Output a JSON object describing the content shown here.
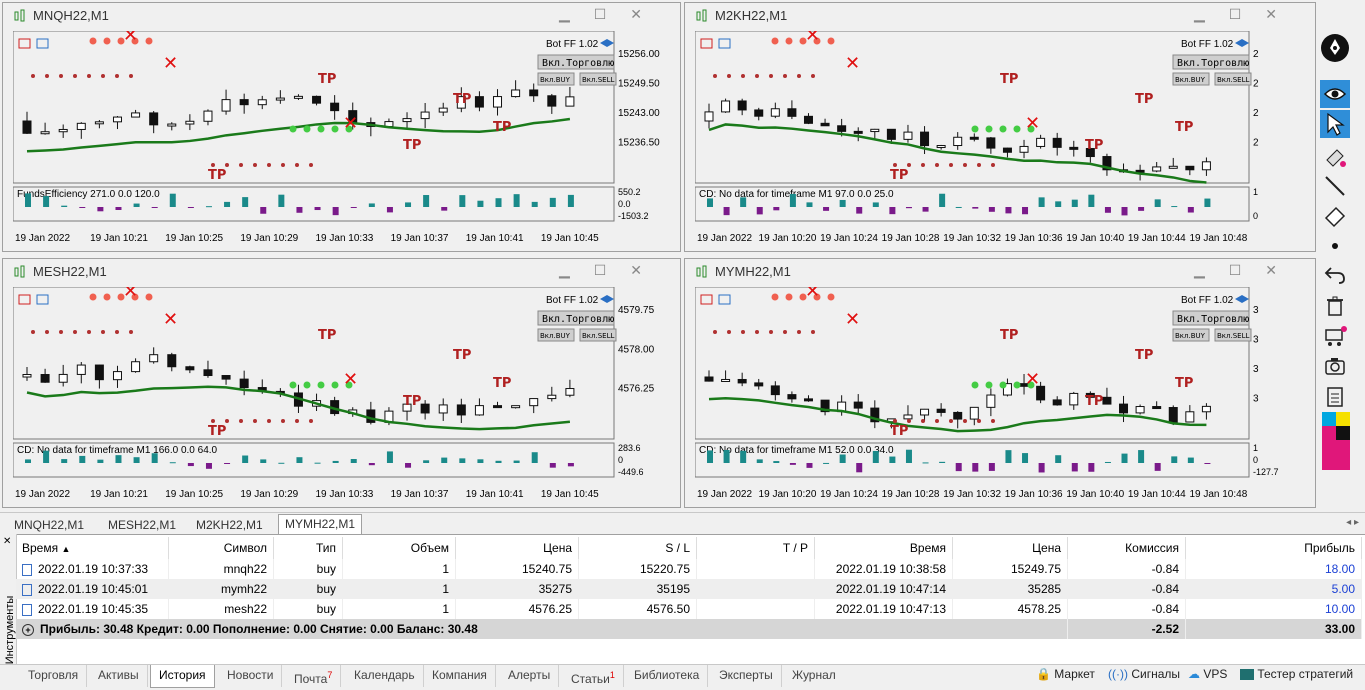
{
  "windows": [
    {
      "title": "MNQH22,M1",
      "prices": [
        "15256.00",
        "15249.50",
        "15243.00",
        "15236.50"
      ],
      "indicator": "FundsEfficiency 271.0 0.0 120.0",
      "ind_scale": [
        "550.2",
        "0.0",
        "-1503.2"
      ],
      "times": [
        "19 Jan 2022",
        "19 Jan 10:21",
        "19 Jan 10:25",
        "19 Jan 10:29",
        "19 Jan 10:33",
        "19 Jan 10:37",
        "19 Jan 10:41",
        "19 Jan 10:45"
      ]
    },
    {
      "title": "M2KH22,M1",
      "prices": [
        "2",
        "2",
        "2",
        "2"
      ],
      "indicator": "CD: No data for timeframe M1 97.0 0.0 25.0",
      "ind_scale": [
        "1",
        "0"
      ],
      "times": [
        "19 Jan 2022",
        "19 Jan 10:20",
        "19 Jan 10:24",
        "19 Jan 10:28",
        "19 Jan 10:32",
        "19 Jan 10:36",
        "19 Jan 10:40",
        "19 Jan 10:44",
        "19 Jan 10:48"
      ]
    },
    {
      "title": "MESH22,M1",
      "prices": [
        "4579.75",
        "4578.00",
        "4576.25"
      ],
      "indicator": "CD: No data for timeframe M1 166.0 0.0 64.0",
      "ind_scale": [
        "283.6",
        "0",
        "-449.6"
      ],
      "times": [
        "19 Jan 2022",
        "19 Jan 10:21",
        "19 Jan 10:25",
        "19 Jan 10:29",
        "19 Jan 10:33",
        "19 Jan 10:37",
        "19 Jan 10:41",
        "19 Jan 10:45"
      ]
    },
    {
      "title": "MYMH22,M1",
      "prices": [
        "3",
        "3",
        "3",
        "3"
      ],
      "indicator": "CD: No data for timeframe M1 52.0 0.0 34.0",
      "ind_scale": [
        "1",
        "0",
        "-127.7"
      ],
      "times": [
        "19 Jan 2022",
        "19 Jan 10:20",
        "19 Jan 10:24",
        "19 Jan 10:28",
        "19 Jan 10:32",
        "19 Jan 10:36",
        "19 Jan 10:40",
        "19 Jan 10:44",
        "19 Jan 10:48"
      ]
    }
  ],
  "panel_labels": {
    "bot": "Bot FF 1.02",
    "trade_btn": "Вкл.Торговлю",
    "buy_btn": "Вкл.BUY",
    "sell_btn": "Вкл.SELL",
    "tp": "TP"
  },
  "chart_tabs": [
    "MNQH22,M1",
    "MESH22,M1",
    "M2KH22,M1",
    "MYMH22,M1"
  ],
  "active_chart_tab": "MYMH22,M1",
  "table": {
    "headers": [
      "Время",
      "Символ",
      "Тип",
      "Объем",
      "Цена",
      "S / L",
      "T / P",
      "Время",
      "Цена",
      "Комиссия",
      "Прибыль"
    ],
    "rows": [
      [
        "2022.01.19 10:37:33",
        "mnqh22",
        "buy",
        "1",
        "15240.75",
        "15220.75",
        "",
        "2022.01.19 10:38:58",
        "15249.75",
        "-0.84",
        "18.00"
      ],
      [
        "2022.01.19 10:45:01",
        "mymh22",
        "buy",
        "1",
        "35275",
        "35195",
        "",
        "2022.01.19 10:47:14",
        "35285",
        "-0.84",
        "5.00"
      ],
      [
        "2022.01.19 10:45:35",
        "mesh22",
        "buy",
        "1",
        "4576.25",
        "4576.50",
        "",
        "2022.01.19 10:47:13",
        "4578.25",
        "-0.84",
        "10.00"
      ]
    ],
    "summary": "Прибыль: 30.48  Кредит: 0.00  Пополнение: 0.00  Снятие: 0.00  Баланс: 30.48",
    "summary_commission": "-2.52",
    "summary_profit": "33.00"
  },
  "side_label": "Инструменты",
  "bottom_tabs": [
    "Торговля",
    "Активы",
    "История",
    "Новости",
    "Почта",
    "Календарь",
    "Компания",
    "Алерты",
    "Статьи",
    "Библиотека",
    "Эксперты",
    "Журнал"
  ],
  "bottom_tab_badges": {
    "mail": "7",
    "articles": "1"
  },
  "active_bottom_tab": "История",
  "bottom_right": [
    "Маркет",
    "Сигналы",
    "VPS",
    "Тестер стратегий"
  ]
}
